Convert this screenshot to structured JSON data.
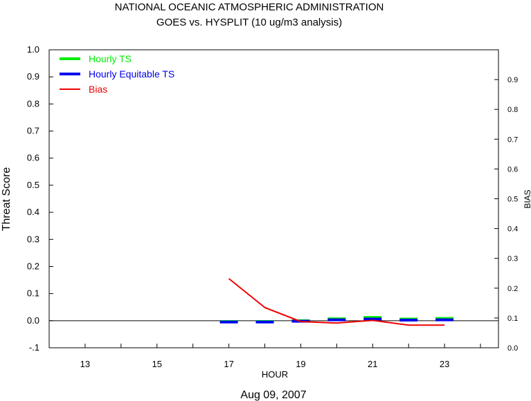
{
  "chart_data": {
    "type": "line",
    "title": "NATIONAL OCEANIC ATMOSPHERIC ADMINISTRATION",
    "subtitle": "GOES vs. HYSPLIT  (10 ug/m3 analysis)",
    "xlabel": "HOUR",
    "ylabel": "Threat Score",
    "y2label": "BIAS",
    "date_label": "Aug 09, 2007",
    "xlim": [
      12,
      24.5
    ],
    "ylim": [
      -0.1,
      1.0
    ],
    "y2lim": [
      0.0,
      1.0
    ],
    "x_ticks": [
      13,
      15,
      17,
      19,
      21,
      23
    ],
    "y_ticks": [
      "-.1",
      "0.0",
      "0.1",
      "0.2",
      "0.3",
      "0.4",
      "0.5",
      "0.6",
      "0.7",
      "0.8",
      "0.9",
      "1.0"
    ],
    "y2_ticks": [
      "0.0",
      "0.1",
      "0.2",
      "0.3",
      "0.4",
      "0.5",
      "0.6",
      "0.7",
      "0.8",
      "0.9"
    ],
    "legend_position": "top-left",
    "series": [
      {
        "name": "Hourly TS",
        "color": "#00ee00",
        "style": "dash",
        "axis": "left",
        "x": [
          17,
          18,
          19,
          20,
          21,
          22,
          23
        ],
        "values": [
          -0.003,
          -0.003,
          0.0,
          0.007,
          0.012,
          0.006,
          0.008
        ]
      },
      {
        "name": "Hourly Equitable TS",
        "color": "#0000ee",
        "style": "dash",
        "axis": "left",
        "x": [
          17,
          18,
          19,
          20,
          21,
          22,
          23
        ],
        "values": [
          -0.005,
          -0.005,
          -0.002,
          0.003,
          0.006,
          0.002,
          0.003
        ]
      },
      {
        "name": "Bias",
        "color": "#ee0000",
        "style": "line",
        "axis": "right",
        "x": [
          17,
          18,
          19,
          20,
          21,
          22,
          23
        ],
        "values": [
          0.232,
          0.135,
          0.088,
          0.083,
          0.092,
          0.076,
          0.076
        ]
      }
    ]
  }
}
